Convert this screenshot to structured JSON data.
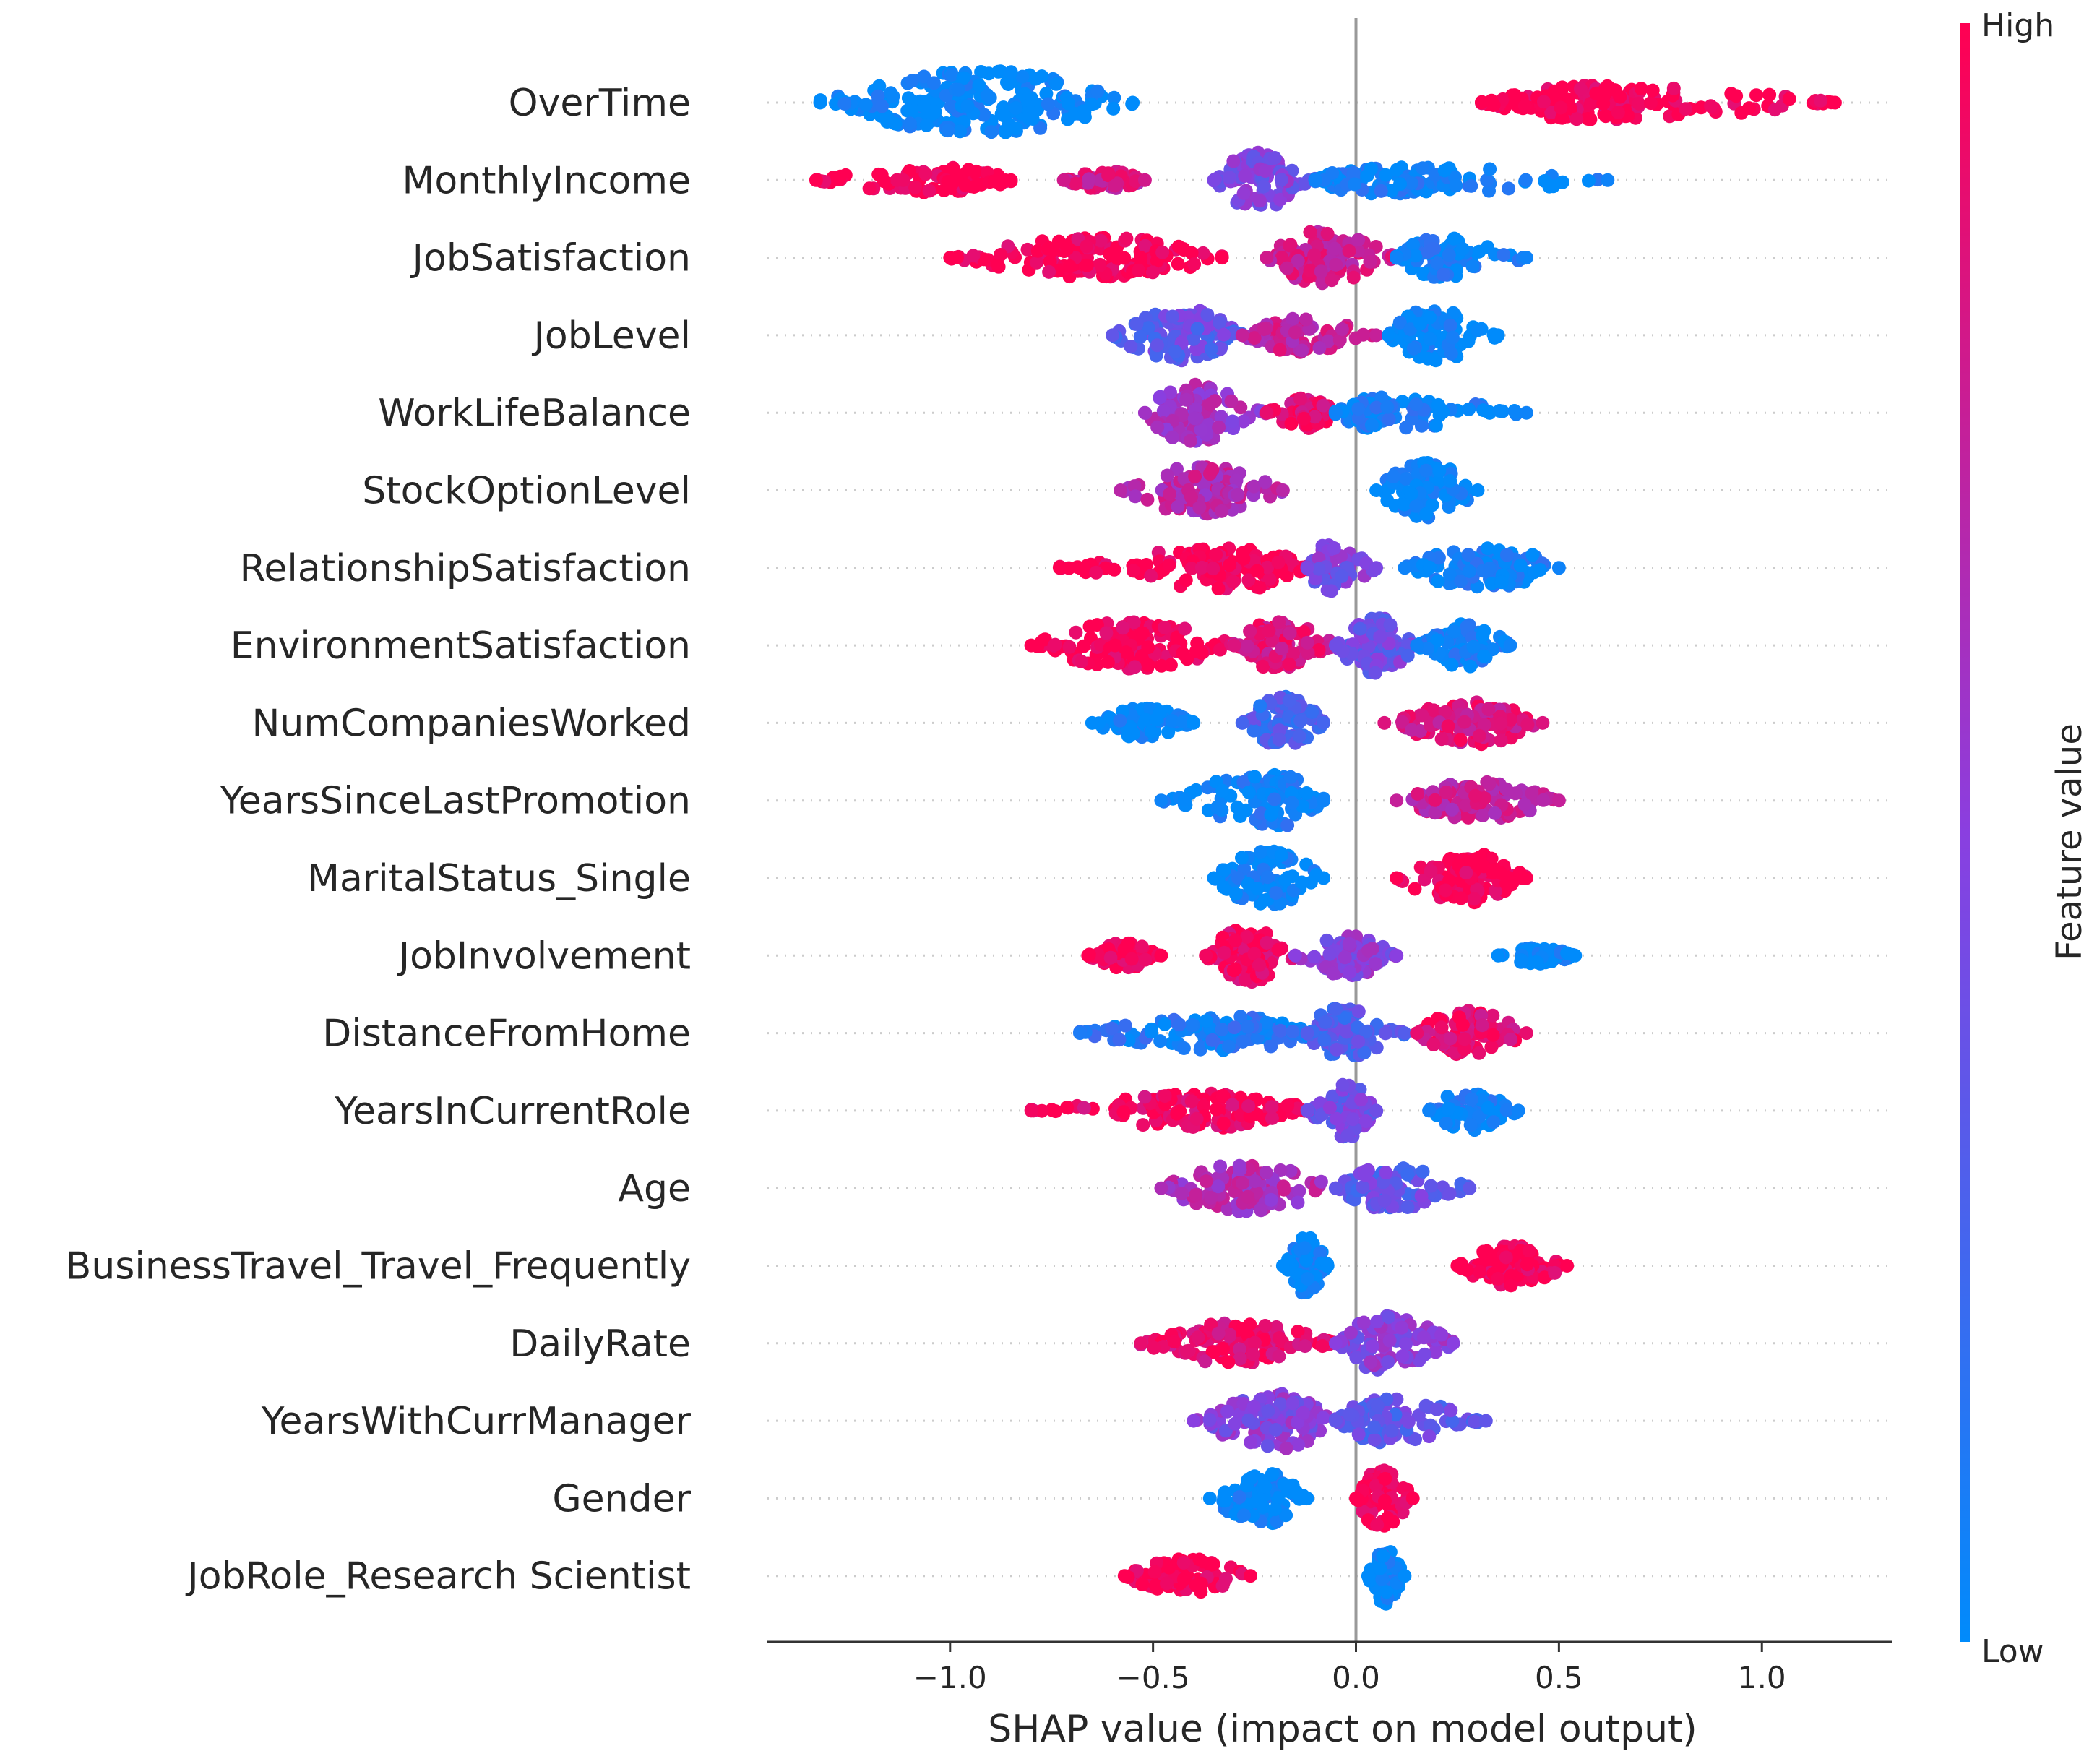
{
  "chart_data": {
    "type": "scatter",
    "subtype": "shap-beeswarm",
    "xlabel": "SHAP value (impact on model output)",
    "xlim": [
      -1.45,
      1.32
    ],
    "xticks": [
      -1.0,
      -0.5,
      0.0,
      0.5,
      1.0
    ],
    "xtick_labels": [
      "−1.0",
      "−0.5",
      "0.0",
      "0.5",
      "1.0"
    ],
    "colorbar": {
      "title": "Feature value",
      "high_label": "High",
      "low_label": "Low",
      "low_color": "#008bfb",
      "high_color": "#ff0052"
    },
    "features": [
      {
        "name": "OverTime",
        "clusters": [
          {
            "lo": -1.32,
            "hi": -0.55,
            "center": -0.92,
            "color": 0.0,
            "density": 1.0
          },
          {
            "lo": 0.31,
            "hi": 1.18,
            "center": 0.58,
            "color": 1.0,
            "density": 0.45
          }
        ]
      },
      {
        "name": "MonthlyIncome",
        "clusters": [
          {
            "lo": -1.33,
            "hi": -0.85,
            "center": -1.0,
            "color": 1.0,
            "density": 0.3
          },
          {
            "lo": -0.72,
            "hi": -0.52,
            "center": -0.62,
            "color": 0.8,
            "density": 0.15
          },
          {
            "lo": -0.35,
            "hi": -0.1,
            "center": -0.25,
            "color": 0.45,
            "density": 0.9
          },
          {
            "lo": -0.1,
            "hi": 0.62,
            "center": 0.05,
            "color": 0.05,
            "density": 0.35
          }
        ]
      },
      {
        "name": "JobSatisfaction",
        "clusters": [
          {
            "lo": -1.0,
            "hi": -0.33,
            "center": -0.62,
            "color": 1.0,
            "density": 0.55
          },
          {
            "lo": -0.22,
            "hi": 0.1,
            "center": -0.1,
            "color": 0.8,
            "density": 0.8
          },
          {
            "lo": 0.1,
            "hi": 0.42,
            "center": 0.2,
            "color": 0.05,
            "density": 0.55
          }
        ]
      },
      {
        "name": "JobLevel",
        "clusters": [
          {
            "lo": -0.6,
            "hi": -0.28,
            "center": -0.42,
            "color": 0.35,
            "density": 0.8
          },
          {
            "lo": -0.28,
            "hi": 0.05,
            "center": -0.15,
            "color": 0.75,
            "density": 0.45
          },
          {
            "lo": 0.08,
            "hi": 0.35,
            "center": 0.18,
            "color": 0.0,
            "density": 0.8
          }
        ]
      },
      {
        "name": "WorkLifeBalance",
        "clusters": [
          {
            "lo": -0.52,
            "hi": -0.22,
            "center": -0.42,
            "color": 0.6,
            "density": 0.9
          },
          {
            "lo": -0.22,
            "hi": -0.05,
            "center": -0.12,
            "color": 0.9,
            "density": 0.4
          },
          {
            "lo": -0.05,
            "hi": 0.42,
            "center": 0.05,
            "color": 0.05,
            "density": 0.4
          }
        ]
      },
      {
        "name": "StockOptionLevel",
        "clusters": [
          {
            "lo": -0.58,
            "hi": -0.18,
            "center": -0.38,
            "color": 0.7,
            "density": 0.7
          },
          {
            "lo": 0.05,
            "hi": 0.3,
            "center": 0.17,
            "color": 0.0,
            "density": 0.85
          }
        ]
      },
      {
        "name": "RelationshipSatisfaction",
        "clusters": [
          {
            "lo": -0.73,
            "hi": -0.12,
            "center": -0.28,
            "color": 1.0,
            "density": 0.6
          },
          {
            "lo": -0.12,
            "hi": 0.05,
            "center": -0.07,
            "color": 0.45,
            "density": 0.7
          },
          {
            "lo": 0.12,
            "hi": 0.5,
            "center": 0.33,
            "color": 0.05,
            "density": 0.6
          }
        ]
      },
      {
        "name": "EnvironmentSatisfaction",
        "clusters": [
          {
            "lo": -0.8,
            "hi": -0.3,
            "center": -0.55,
            "color": 1.0,
            "density": 0.7
          },
          {
            "lo": -0.3,
            "hi": -0.05,
            "center": -0.2,
            "color": 0.85,
            "density": 0.7
          },
          {
            "lo": -0.05,
            "hi": 0.15,
            "center": 0.05,
            "color": 0.4,
            "density": 0.85
          },
          {
            "lo": 0.15,
            "hi": 0.38,
            "center": 0.27,
            "color": 0.05,
            "density": 0.6
          }
        ]
      },
      {
        "name": "NumCompaniesWorked",
        "clusters": [
          {
            "lo": -0.65,
            "hi": -0.4,
            "center": -0.52,
            "color": 0.0,
            "density": 0.35
          },
          {
            "lo": -0.28,
            "hi": -0.08,
            "center": -0.18,
            "color": 0.25,
            "density": 0.85
          },
          {
            "lo": 0.07,
            "hi": 0.46,
            "center": 0.3,
            "color": 0.85,
            "density": 0.6
          }
        ]
      },
      {
        "name": "YearsSinceLastPromotion",
        "clusters": [
          {
            "lo": -0.48,
            "hi": -0.08,
            "center": -0.2,
            "color": 0.05,
            "density": 0.8
          },
          {
            "lo": 0.1,
            "hi": 0.5,
            "center": 0.3,
            "color": 0.75,
            "density": 0.5
          }
        ]
      },
      {
        "name": "MaritalStatus_Single",
        "clusters": [
          {
            "lo": -0.35,
            "hi": -0.08,
            "center": -0.22,
            "color": 0.0,
            "density": 0.85
          },
          {
            "lo": 0.1,
            "hi": 0.42,
            "center": 0.28,
            "color": 1.0,
            "density": 0.75
          }
        ]
      },
      {
        "name": "JobInvolvement",
        "clusters": [
          {
            "lo": -0.66,
            "hi": -0.48,
            "center": -0.57,
            "color": 1.0,
            "density": 0.3
          },
          {
            "lo": -0.37,
            "hi": -0.15,
            "center": -0.27,
            "color": 0.95,
            "density": 0.85
          },
          {
            "lo": -0.15,
            "hi": 0.1,
            "center": -0.02,
            "color": 0.5,
            "density": 0.55
          },
          {
            "lo": 0.35,
            "hi": 0.54,
            "center": 0.45,
            "color": 0.0,
            "density": 0.1
          }
        ]
      },
      {
        "name": "DistanceFromHome",
        "clusters": [
          {
            "lo": -0.68,
            "hi": -0.1,
            "center": -0.3,
            "color": 0.1,
            "density": 0.45
          },
          {
            "lo": -0.12,
            "hi": 0.12,
            "center": -0.05,
            "color": 0.3,
            "density": 0.75
          },
          {
            "lo": 0.15,
            "hi": 0.42,
            "center": 0.27,
            "color": 0.9,
            "density": 0.65
          }
        ]
      },
      {
        "name": "YearsInCurrentRole",
        "clusters": [
          {
            "lo": -0.8,
            "hi": -0.1,
            "center": -0.35,
            "color": 0.95,
            "density": 0.45
          },
          {
            "lo": -0.12,
            "hi": 0.05,
            "center": -0.02,
            "color": 0.4,
            "density": 0.8
          },
          {
            "lo": 0.18,
            "hi": 0.4,
            "center": 0.28,
            "color": 0.05,
            "density": 0.55
          }
        ]
      },
      {
        "name": "Age",
        "clusters": [
          {
            "lo": -0.48,
            "hi": -0.05,
            "center": -0.28,
            "color": 0.65,
            "density": 0.7
          },
          {
            "lo": -0.05,
            "hi": 0.28,
            "center": 0.08,
            "color": 0.35,
            "density": 0.6
          }
        ]
      },
      {
        "name": "BusinessTravel_Travel_Frequently",
        "clusters": [
          {
            "lo": -0.18,
            "hi": -0.07,
            "center": -0.12,
            "color": 0.0,
            "density": 0.9
          },
          {
            "lo": 0.25,
            "hi": 0.52,
            "center": 0.38,
            "color": 1.0,
            "density": 0.55
          }
        ]
      },
      {
        "name": "DailyRate",
        "clusters": [
          {
            "lo": -0.53,
            "hi": -0.05,
            "center": -0.3,
            "color": 0.9,
            "density": 0.55
          },
          {
            "lo": -0.05,
            "hi": 0.24,
            "center": 0.07,
            "color": 0.5,
            "density": 0.85
          }
        ]
      },
      {
        "name": "YearsWithCurrManager",
        "clusters": [
          {
            "lo": -0.4,
            "hi": -0.05,
            "center": -0.18,
            "color": 0.5,
            "density": 0.85
          },
          {
            "lo": -0.05,
            "hi": 0.32,
            "center": 0.05,
            "color": 0.35,
            "density": 0.65
          }
        ]
      },
      {
        "name": "Gender",
        "clusters": [
          {
            "lo": -0.36,
            "hi": -0.12,
            "center": -0.22,
            "color": 0.0,
            "density": 0.75
          },
          {
            "lo": 0.0,
            "hi": 0.14,
            "center": 0.06,
            "color": 1.0,
            "density": 0.9
          }
        ]
      },
      {
        "name": "JobRole_Research Scientist",
        "clusters": [
          {
            "lo": -0.57,
            "hi": -0.26,
            "center": -0.42,
            "color": 1.0,
            "density": 0.45
          },
          {
            "lo": 0.03,
            "hi": 0.12,
            "center": 0.07,
            "color": 0.0,
            "density": 0.9
          }
        ]
      }
    ]
  }
}
